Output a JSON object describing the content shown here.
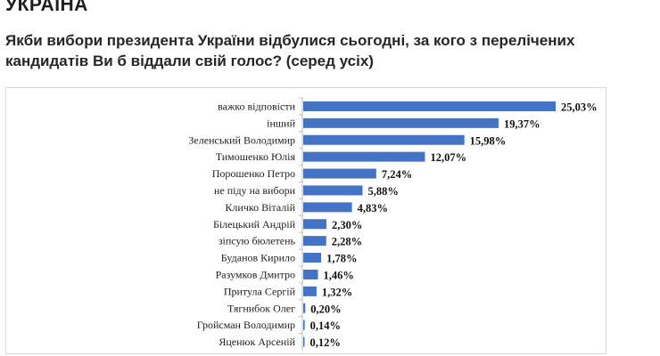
{
  "page": {
    "heading": "УКРАЇНА",
    "question": "Якби вибори президента України відбулися сьогодні, за кого з перелічених кандидатів Ви б віддали свій голос? (серед усіх)"
  },
  "chart_data": {
    "type": "bar",
    "orientation": "horizontal",
    "title": "",
    "xlabel": "",
    "ylabel": "",
    "xlim": [
      0,
      25.03
    ],
    "grid": false,
    "legend": "none",
    "bar_color": "#4472c4",
    "categories": [
      "важко відповісти",
      "інший",
      "Зеленський Володимир",
      "Тимошенко Юлія",
      "Порошенко Петро",
      "не піду на вибори",
      "Кличко Віталій",
      "Білецький Андрій",
      "зіпсую бюлетень",
      "Буданов Кирило",
      "Разумков Дмитро",
      "Притула Сергій",
      "Тягнибок Олег",
      "Гройсман Володимир",
      "Яценюк Арсеній"
    ],
    "values": [
      25.03,
      19.37,
      15.98,
      12.07,
      7.24,
      5.88,
      4.83,
      2.3,
      2.28,
      1.78,
      1.46,
      1.32,
      0.2,
      0.14,
      0.12
    ],
    "value_labels": [
      "25,03%",
      "19,37%",
      "15,98%",
      "12,07%",
      "7,24%",
      "5,88%",
      "4,83%",
      "2,30%",
      "2,28%",
      "1,78%",
      "1,46%",
      "1,32%",
      "0,20%",
      "0,14%",
      "0,12%"
    ]
  }
}
